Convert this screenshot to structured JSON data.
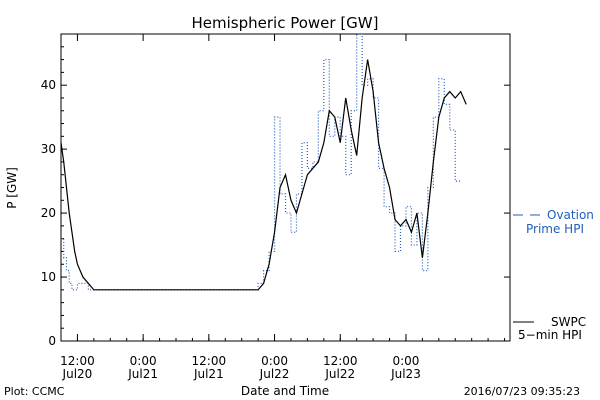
{
  "chart_data": {
    "type": "line",
    "title": "Hemispheric Power [GW]",
    "ylabel": "P [GW]",
    "xlabel": "Date and Time",
    "ylim": [
      0,
      48
    ],
    "yticks": [
      0,
      10,
      20,
      30,
      40
    ],
    "xlim": [
      "2016-07-20 09:00",
      "2016-07-23 19:00"
    ],
    "xticks": [
      {
        "t": "2016-07-20 12:00",
        "line1": "12:00",
        "line2": "Jul20"
      },
      {
        "t": "2016-07-21 00:00",
        "line1": "0:00",
        "line2": "Jul21"
      },
      {
        "t": "2016-07-21 12:00",
        "line1": "12:00",
        "line2": "Jul21"
      },
      {
        "t": "2016-07-22 00:00",
        "line1": "0:00",
        "line2": "Jul22"
      },
      {
        "t": "2016-07-22 12:00",
        "line1": "12:00",
        "line2": "Jul22"
      },
      {
        "t": "2016-07-23 00:00",
        "line1": "0:00",
        "line2": "Jul23"
      }
    ],
    "series": [
      {
        "name": "Ovation Prime HPI",
        "legend_lines": [
          "Ovation",
          "Prime HPI"
        ],
        "color": "#1f5fbf",
        "style": "dotted-step",
        "x": [
          "2016-07-20 09:00",
          "2016-07-20 09:30",
          "2016-07-20 10:00",
          "2016-07-20 10:30",
          "2016-07-20 11:00",
          "2016-07-20 12:00",
          "2016-07-20 13:00",
          "2016-07-20 14:00",
          "2016-07-20 15:00",
          "2016-07-21 21:00",
          "2016-07-21 22:00",
          "2016-07-21 23:00",
          "2016-07-22 00:00",
          "2016-07-22 01:00",
          "2016-07-22 02:00",
          "2016-07-22 03:00",
          "2016-07-22 04:00",
          "2016-07-22 05:00",
          "2016-07-22 06:00",
          "2016-07-22 07:00",
          "2016-07-22 08:00",
          "2016-07-22 09:00",
          "2016-07-22 10:00",
          "2016-07-22 11:00",
          "2016-07-22 12:00",
          "2016-07-22 13:00",
          "2016-07-22 14:00",
          "2016-07-22 15:00",
          "2016-07-22 16:00",
          "2016-07-22 17:00",
          "2016-07-22 18:00",
          "2016-07-22 19:00",
          "2016-07-22 20:00",
          "2016-07-22 21:00",
          "2016-07-22 22:00",
          "2016-07-22 23:00",
          "2016-07-23 00:00",
          "2016-07-23 01:00",
          "2016-07-23 02:00",
          "2016-07-23 03:00",
          "2016-07-23 04:00",
          "2016-07-23 05:00",
          "2016-07-23 06:00",
          "2016-07-23 07:00",
          "2016-07-23 08:00",
          "2016-07-23 09:00",
          "2016-07-23 10:00"
        ],
        "y": [
          16,
          13,
          11,
          9,
          8,
          9,
          9,
          8,
          8,
          9,
          11,
          14,
          35,
          23,
          20,
          17,
          23,
          31,
          27,
          28,
          36,
          44,
          32,
          35,
          32,
          26,
          36,
          48,
          40,
          41,
          38,
          27,
          21,
          20,
          14,
          18,
          21,
          15,
          20,
          11,
          24,
          35,
          41,
          37,
          33,
          25,
          25
        ]
      },
      {
        "name": "SWPC 5-min HPI",
        "legend_lines": [
          "SWPC",
          "5−min HPI"
        ],
        "color": "#000000",
        "style": "solid",
        "x": [
          "2016-07-20 09:00",
          "2016-07-20 09:30",
          "2016-07-20 10:00",
          "2016-07-20 10:30",
          "2016-07-20 11:00",
          "2016-07-20 11:30",
          "2016-07-20 12:00",
          "2016-07-20 13:00",
          "2016-07-20 14:00",
          "2016-07-20 15:00",
          "2016-07-21 21:00",
          "2016-07-21 22:00",
          "2016-07-21 23:00",
          "2016-07-22 00:00",
          "2016-07-22 01:00",
          "2016-07-22 02:00",
          "2016-07-22 03:00",
          "2016-07-22 04:00",
          "2016-07-22 05:00",
          "2016-07-22 06:00",
          "2016-07-22 07:00",
          "2016-07-22 08:00",
          "2016-07-22 09:00",
          "2016-07-22 10:00",
          "2016-07-22 11:00",
          "2016-07-22 12:00",
          "2016-07-22 13:00",
          "2016-07-22 14:00",
          "2016-07-22 15:00",
          "2016-07-22 16:00",
          "2016-07-22 17:00",
          "2016-07-22 18:00",
          "2016-07-22 19:00",
          "2016-07-22 20:00",
          "2016-07-22 21:00",
          "2016-07-22 22:00",
          "2016-07-22 23:00",
          "2016-07-23 00:00",
          "2016-07-23 01:00",
          "2016-07-23 02:00",
          "2016-07-23 03:00",
          "2016-07-23 04:00",
          "2016-07-23 05:00",
          "2016-07-23 06:00",
          "2016-07-23 07:00",
          "2016-07-23 08:00",
          "2016-07-23 09:00",
          "2016-07-23 10:00",
          "2016-07-23 11:00"
        ],
        "y": [
          31,
          28,
          24,
          20,
          17,
          14,
          12,
          10,
          9,
          8,
          8,
          9,
          12,
          17,
          24,
          26,
          22,
          20,
          23,
          26,
          27,
          28,
          31,
          36,
          35,
          31,
          38,
          33,
          29,
          38,
          44,
          39,
          31,
          27,
          24,
          19,
          18,
          19,
          17,
          20,
          13,
          20,
          28,
          35,
          38,
          39,
          38,
          39,
          37
        ]
      }
    ]
  },
  "footer": {
    "left": "Plot: CCMC",
    "right": "2016/07/23 09:35:23"
  }
}
